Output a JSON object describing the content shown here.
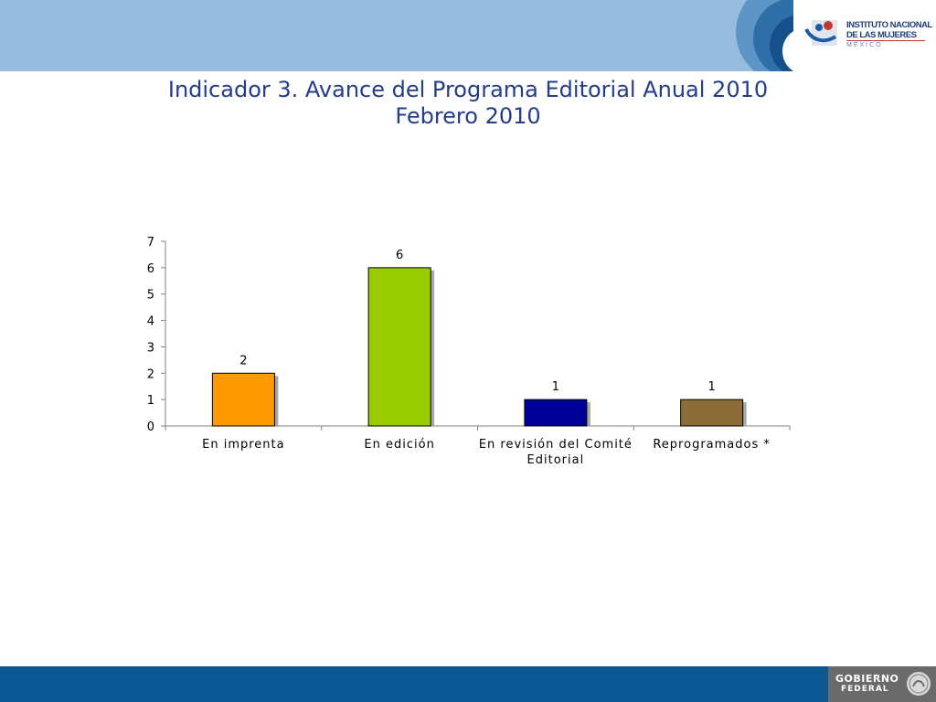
{
  "header": {
    "logo": {
      "line1": "INSTITUTO NACIONAL",
      "line2": "DE LAS MUJERES",
      "line3": "MÉXICO",
      "icon": "inmujeres-logo-icon"
    }
  },
  "title": {
    "line1": "Indicador 3. Avance del Programa Editorial Anual 2010",
    "line2": "Febrero 2010"
  },
  "chart_data": {
    "type": "bar",
    "categories": [
      [
        "En imprenta"
      ],
      [
        "En edición"
      ],
      [
        "En revisión del Comité",
        "Editorial"
      ],
      [
        "Reprogramados *"
      ]
    ],
    "values": [
      2,
      6,
      1,
      1
    ],
    "colors": [
      "#ff9900",
      "#99cc00",
      "#000099",
      "#8c6d3a"
    ],
    "ylim": [
      0,
      7
    ],
    "yticks": [
      0,
      1,
      2,
      3,
      4,
      5,
      6,
      7
    ],
    "data_labels": true,
    "grid": false,
    "legend": "none"
  },
  "footer": {
    "brand_line1": "GOBIERNO",
    "brand_line2": "FEDERAL",
    "seal_icon": "mexican-eagle-seal-icon"
  }
}
